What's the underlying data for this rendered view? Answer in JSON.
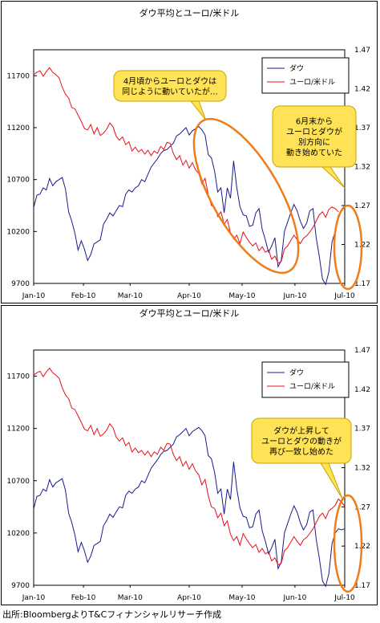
{
  "source_note": "出所:BloombergよりT&Cフィナンシャルリサーチ作成",
  "colors": {
    "dow": "#1a1a8c",
    "eurusd": "#e8101a",
    "callout_fill": "#ffe255",
    "ellipse": "#f07c1a"
  },
  "chart_data": [
    {
      "type": "line",
      "title": "ダウ平均とユーロ/米ドル",
      "xlabel": "",
      "ylabel": "",
      "x_tick_labels": [
        "Jan-10",
        "Feb-10",
        "Mar-10",
        "Apr-10",
        "May-10",
        "Jun-10",
        "Jul-10"
      ],
      "y_left_ticks": [
        "11700",
        "11200",
        "10700",
        "10200",
        "9700"
      ],
      "y_right_ticks": [
        "1.47",
        "1.42",
        "1.37",
        "1.32",
        "1.27",
        "1.22",
        "1.17"
      ],
      "ylim_left": [
        9700,
        11950
      ],
      "ylim_right": [
        1.17,
        1.47
      ],
      "legend_position": "top-right",
      "grid": false,
      "series": [
        {
          "name": "ダウ",
          "axis": "left",
          "x": [
            0,
            2,
            4,
            6,
            8,
            10,
            12,
            14,
            16,
            18,
            20,
            22,
            24,
            26,
            28,
            30,
            32,
            34,
            36,
            38,
            40,
            42,
            44,
            46,
            48,
            50,
            52,
            54,
            56,
            58,
            60,
            62,
            64,
            66,
            68,
            70,
            72,
            74,
            76,
            78,
            80,
            82,
            84,
            86,
            88,
            90,
            92,
            94,
            96,
            98,
            100,
            102,
            104,
            106,
            108,
            110,
            112,
            114,
            116,
            118,
            120,
            122,
            124,
            126,
            128,
            130,
            132,
            134,
            136,
            138,
            140,
            142,
            144,
            146,
            148,
            150,
            152,
            154,
            156,
            158,
            160,
            162,
            164,
            166,
            168,
            170,
            172,
            174,
            176,
            178,
            180,
            182,
            184,
            186,
            188,
            190,
            192
          ],
          "values": [
            10430,
            10550,
            10560,
            10620,
            10600,
            10710,
            10640,
            10680,
            10700,
            10720,
            10610,
            10390,
            10300,
            10180,
            10020,
            10110,
            10030,
            9920,
            9980,
            10080,
            10100,
            10120,
            10270,
            10320,
            10380,
            10350,
            10400,
            10450,
            10440,
            10560,
            10600,
            10580,
            10620,
            10640,
            10700,
            10680,
            10750,
            10820,
            10860,
            10900,
            10950,
            10980,
            10990,
            11020,
            11050,
            11120,
            11140,
            11170,
            11200,
            11130,
            11170,
            11190,
            11210,
            11180,
            11130,
            10940,
            10910,
            10780,
            10580,
            10620,
            10380,
            10620,
            10520,
            10880,
            10620,
            10440,
            10360,
            10350,
            10250,
            10260,
            10380,
            10420,
            10220,
            10120,
            10000,
            10060,
            10140,
            9860,
            9920,
            10200,
            10290,
            10380,
            10460,
            10400,
            10300,
            10230,
            10280,
            10400,
            10420,
            10140,
            9960,
            9740,
            9690,
            9810,
            10100,
            10200,
            10360
          ]
        },
        {
          "name": "ユーロ/米ドル",
          "axis": "right",
          "x": [
            0,
            2,
            4,
            6,
            8,
            10,
            12,
            14,
            16,
            18,
            20,
            22,
            24,
            26,
            28,
            30,
            32,
            34,
            36,
            38,
            40,
            42,
            44,
            46,
            48,
            50,
            52,
            54,
            56,
            58,
            60,
            62,
            64,
            66,
            68,
            70,
            72,
            74,
            76,
            78,
            80,
            82,
            84,
            86,
            88,
            90,
            92,
            94,
            96,
            98,
            100,
            102,
            104,
            106,
            108,
            110,
            112,
            114,
            116,
            118,
            120,
            122,
            124,
            126,
            128,
            130,
            132,
            134,
            136,
            138,
            140,
            142,
            144,
            146,
            148,
            150,
            152,
            154,
            156,
            158,
            160,
            162,
            164,
            166,
            168,
            170,
            172,
            174,
            176,
            178,
            180,
            182,
            184,
            186,
            188,
            190,
            192
          ],
          "values": [
            1.438,
            1.441,
            1.443,
            1.436,
            1.442,
            1.447,
            1.441,
            1.438,
            1.434,
            1.422,
            1.413,
            1.408,
            1.396,
            1.394,
            1.386,
            1.378,
            1.369,
            1.367,
            1.374,
            1.362,
            1.37,
            1.36,
            1.363,
            1.368,
            1.376,
            1.371,
            1.359,
            1.354,
            1.358,
            1.348,
            1.352,
            1.34,
            1.345,
            1.339,
            1.342,
            1.336,
            1.341,
            1.334,
            1.34,
            1.337,
            1.346,
            1.342,
            1.351,
            1.35,
            1.337,
            1.329,
            1.334,
            1.322,
            1.328,
            1.318,
            1.325,
            1.316,
            1.311,
            1.298,
            1.305,
            1.284,
            1.27,
            1.268,
            1.256,
            1.262,
            1.246,
            1.252,
            1.235,
            1.227,
            1.232,
            1.221,
            1.236,
            1.229,
            1.223,
            1.218,
            1.222,
            1.212,
            1.217,
            1.21,
            1.213,
            1.201,
            1.205,
            1.196,
            1.198,
            1.214,
            1.218,
            1.225,
            1.232,
            1.226,
            1.221,
            1.228,
            1.231,
            1.236,
            1.242,
            1.25,
            1.258,
            1.262,
            1.255,
            1.265,
            1.268,
            1.266,
            1.262
          ]
        }
      ],
      "annotations": [
        {
          "kind": "callout",
          "lines": [
            "4月頃からユーロとダウは",
            "同じように動いていたが…"
          ]
        },
        {
          "kind": "callout",
          "lines": [
            "6月末から",
            "ユーロとダウが",
            "別方向に",
            "動き始めていた"
          ]
        }
      ]
    },
    {
      "type": "line",
      "title": "ダウ平均とユーロ/米ドル",
      "xlabel": "",
      "ylabel": "",
      "x_tick_labels": [
        "Jan-10",
        "Feb-10",
        "Mar-10",
        "Apr-10",
        "May-10",
        "Jun-10",
        "Jul-10"
      ],
      "y_left_ticks": [
        "11700",
        "11200",
        "10700",
        "10200",
        "9700"
      ],
      "y_right_ticks": [
        "1.47",
        "1.42",
        "1.37",
        "1.32",
        "1.27",
        "1.22",
        "1.17"
      ],
      "ylim_left": [
        9700,
        11950
      ],
      "ylim_right": [
        1.17,
        1.47
      ],
      "legend_position": "top-right",
      "grid": false,
      "series": [
        {
          "name": "ダウ",
          "axis": "left",
          "x": [
            0,
            2,
            4,
            6,
            8,
            10,
            12,
            14,
            16,
            18,
            20,
            22,
            24,
            26,
            28,
            30,
            32,
            34,
            36,
            38,
            40,
            42,
            44,
            46,
            48,
            50,
            52,
            54,
            56,
            58,
            60,
            62,
            64,
            66,
            68,
            70,
            72,
            74,
            76,
            78,
            80,
            82,
            84,
            86,
            88,
            90,
            92,
            94,
            96,
            98,
            100,
            102,
            104,
            106,
            108,
            110,
            112,
            114,
            116,
            118,
            120,
            122,
            124,
            126,
            128,
            130,
            132,
            134,
            136,
            138,
            140,
            142,
            144,
            146,
            148,
            150,
            152,
            154,
            156,
            158,
            160,
            162,
            164,
            166,
            168,
            170,
            172,
            174,
            176,
            178,
            180,
            182,
            184,
            186,
            188,
            190,
            192,
            194,
            196
          ],
          "values": [
            10430,
            10550,
            10560,
            10620,
            10600,
            10710,
            10640,
            10680,
            10700,
            10720,
            10610,
            10390,
            10300,
            10180,
            10020,
            10110,
            10030,
            9920,
            9980,
            10080,
            10100,
            10120,
            10270,
            10320,
            10380,
            10350,
            10400,
            10450,
            10440,
            10560,
            10600,
            10580,
            10620,
            10640,
            10700,
            10680,
            10750,
            10820,
            10860,
            10900,
            10950,
            10980,
            10990,
            11020,
            11050,
            11120,
            11140,
            11170,
            11200,
            11130,
            11170,
            11190,
            11210,
            11180,
            11130,
            10940,
            10910,
            10780,
            10580,
            10620,
            10380,
            10620,
            10520,
            10880,
            10620,
            10440,
            10360,
            10350,
            10250,
            10260,
            10380,
            10420,
            10220,
            10120,
            10000,
            10060,
            10140,
            9860,
            9920,
            10200,
            10290,
            10380,
            10460,
            10400,
            10300,
            10230,
            10280,
            10400,
            10420,
            10140,
            9960,
            9740,
            9690,
            9810,
            10100,
            10200,
            10240,
            10230,
            10240
          ]
        },
        {
          "name": "ユーロ/米ドル",
          "axis": "right",
          "x": [
            0,
            2,
            4,
            6,
            8,
            10,
            12,
            14,
            16,
            18,
            20,
            22,
            24,
            26,
            28,
            30,
            32,
            34,
            36,
            38,
            40,
            42,
            44,
            46,
            48,
            50,
            52,
            54,
            56,
            58,
            60,
            62,
            64,
            66,
            68,
            70,
            72,
            74,
            76,
            78,
            80,
            82,
            84,
            86,
            88,
            90,
            92,
            94,
            96,
            98,
            100,
            102,
            104,
            106,
            108,
            110,
            112,
            114,
            116,
            118,
            120,
            122,
            124,
            126,
            128,
            130,
            132,
            134,
            136,
            138,
            140,
            142,
            144,
            146,
            148,
            150,
            152,
            154,
            156,
            158,
            160,
            162,
            164,
            166,
            168,
            170,
            172,
            174,
            176,
            178,
            180,
            182,
            184,
            186,
            188,
            190,
            192,
            194,
            196
          ],
          "values": [
            1.438,
            1.441,
            1.443,
            1.436,
            1.442,
            1.447,
            1.441,
            1.438,
            1.434,
            1.422,
            1.413,
            1.408,
            1.396,
            1.394,
            1.386,
            1.378,
            1.369,
            1.367,
            1.374,
            1.362,
            1.37,
            1.36,
            1.363,
            1.368,
            1.376,
            1.371,
            1.359,
            1.354,
            1.358,
            1.348,
            1.352,
            1.34,
            1.345,
            1.339,
            1.342,
            1.336,
            1.341,
            1.334,
            1.34,
            1.337,
            1.346,
            1.342,
            1.351,
            1.35,
            1.337,
            1.329,
            1.334,
            1.322,
            1.328,
            1.318,
            1.325,
            1.316,
            1.311,
            1.298,
            1.305,
            1.284,
            1.27,
            1.268,
            1.256,
            1.262,
            1.246,
            1.252,
            1.235,
            1.227,
            1.232,
            1.221,
            1.236,
            1.229,
            1.223,
            1.218,
            1.222,
            1.212,
            1.217,
            1.21,
            1.213,
            1.201,
            1.205,
            1.196,
            1.198,
            1.214,
            1.218,
            1.225,
            1.232,
            1.226,
            1.221,
            1.228,
            1.231,
            1.236,
            1.242,
            1.25,
            1.258,
            1.262,
            1.255,
            1.265,
            1.268,
            1.272,
            1.28,
            1.276,
            1.271
          ]
        }
      ],
      "annotations": [
        {
          "kind": "callout",
          "lines": [
            "ダウが上昇して",
            "ユーロとダウの動きが",
            "再び一致し始めた"
          ]
        }
      ]
    }
  ]
}
